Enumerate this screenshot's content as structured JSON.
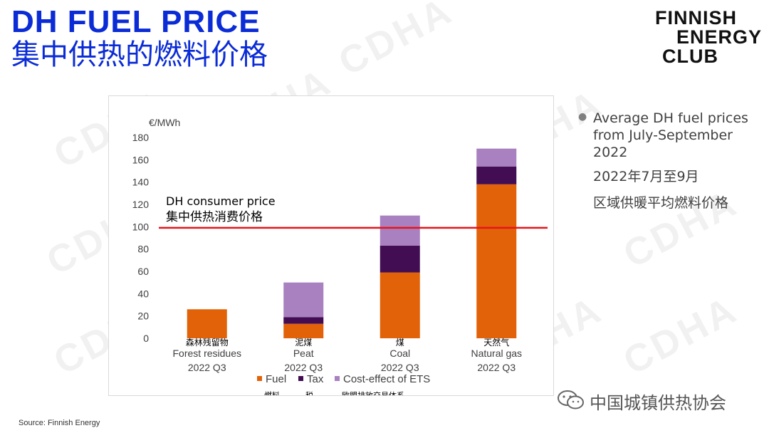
{
  "slide": {
    "title_en": "DH FUEL PRICE",
    "title_cn": "集中供热的燃料价格",
    "source": "Source: Finnish Energy",
    "watermark": "CDHA"
  },
  "logo": {
    "line1": "FINNISH",
    "line2": "ENERGY",
    "line3": "CLUB"
  },
  "side_notes": {
    "bullet_en": "Average DH fuel prices from July-September 2022",
    "date_cn": "2022年7月至9月",
    "desc_cn": "区域供暖平均燃料价格"
  },
  "wechat": {
    "label": "中国城镇供热协会"
  },
  "colors": {
    "title": "#0a2bd6",
    "fuel": "#e2620a",
    "tax": "#420d52",
    "ets": "#a980c0",
    "consumer_line": "#e8141c",
    "gridline": "#d9d9d9"
  },
  "chart_data": {
    "type": "bar",
    "stacked": true,
    "ylabel": "€/MWh",
    "ylim": [
      0,
      180
    ],
    "yticks": [
      0,
      20,
      40,
      60,
      80,
      100,
      120,
      140,
      160,
      180
    ],
    "grid": false,
    "categories": [
      {
        "cn": "森林残留物",
        "en": "Forest residues",
        "period": "2022 Q3"
      },
      {
        "cn": "泥煤",
        "en": "Peat",
        "period": "2022 Q3"
      },
      {
        "cn": "煤",
        "en": "Coal",
        "period": "2022 Q3"
      },
      {
        "cn": "天然气",
        "en": "Natural gas",
        "period": "2022 Q3"
      }
    ],
    "series": [
      {
        "key": "fuel",
        "name": "Fuel",
        "name_cn": "燃料",
        "values": [
          26,
          13,
          59,
          138
        ]
      },
      {
        "key": "tax",
        "name": "Tax",
        "name_cn": "税",
        "values": [
          0,
          6,
          24,
          16
        ]
      },
      {
        "key": "ets",
        "name": "Cost-effect of ETS",
        "name_cn": "欧盟排放交易体系 ETS的成本效应",
        "values": [
          0,
          31,
          27,
          16
        ]
      }
    ],
    "reference_line": {
      "value": 99,
      "label_en": "DH consumer price",
      "label_cn": "集中供热消费价格"
    },
    "legend_position": "bottom"
  }
}
